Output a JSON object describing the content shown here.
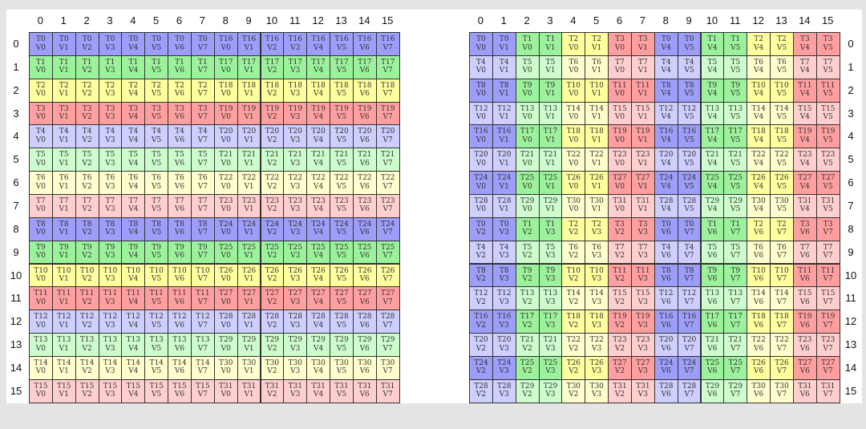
{
  "palette": {
    "dark": [
      "#9d9dfa",
      "#9cf29c",
      "#ffff9e",
      "#ff9f9f"
    ],
    "light": [
      "#ceceff",
      "#cdfdcd",
      "#ffffcd",
      "#ffcfcf"
    ]
  },
  "column_labels": [
    "0",
    "1",
    "2",
    "3",
    "4",
    "5",
    "6",
    "7",
    "8",
    "9",
    "10",
    "11",
    "12",
    "13",
    "14",
    "15"
  ],
  "row_labels": [
    "0",
    "1",
    "2",
    "3",
    "4",
    "5",
    "6",
    "7",
    "8",
    "9",
    "10",
    "11",
    "12",
    "13",
    "14",
    "15"
  ],
  "grids": [
    {
      "rows": [
        "T0:V0 T0:V1 T0:V2 T0:V3 T0:V4 T0:V5 T0:V6 T0:V7 T16:V0 T16:V1 T16:V2 T16:V3 T16:V4 T16:V5 T16:V6 T16:V7",
        "T1:V0 T1:V1 T1:V2 T1:V3 T1:V4 T1:V5 T1:V6 T1:V7 T17:V0 T17:V1 T17:V2 T17:V3 T17:V4 T17:V5 T17:V6 T17:V7",
        "T2:V0 T2:V1 T2:V2 T2:V3 T2:V4 T2:V5 T2:V6 T2:V7 T18:V0 T18:V1 T18:V2 T18:V3 T18:V4 T18:V5 T18:V6 T18:V7",
        "T3:V0 T3:V1 T3:V2 T3:V3 T3:V4 T3:V5 T3:V6 T3:V7 T19:V0 T19:V1 T19:V2 T19:V3 T19:V4 T19:V5 T19:V6 T19:V7",
        "T4:V0 T4:V1 T4:V2 T4:V3 T4:V4 T4:V5 T4:V6 T4:V7 T20:V0 T20:V1 T20:V2 T20:V3 T20:V4 T20:V5 T20:V6 T20:V7",
        "T5:V0 T5:V1 T5:V2 T5:V3 T5:V4 T5:V5 T5:V6 T5:V7 T21:V0 T21:V1 T21:V2 T21:V3 T21:V4 T21:V5 T21:V6 T21:V7",
        "T6:V0 T6:V1 T6:V2 T6:V3 T6:V4 T6:V5 T6:V6 T6:V7 T22:V0 T22:V1 T22:V2 T22:V3 T22:V4 T22:V5 T22:V6 T22:V7",
        "T7:V0 T7:V1 T7:V2 T7:V3 T7:V4 T7:V5 T7:V6 T7:V7 T23:V0 T23:V1 T23:V2 T23:V3 T23:V4 T23:V5 T23:V6 T23:V7",
        "T8:V0 T8:V1 T8:V2 T8:V3 T8:V4 T8:V5 T8:V6 T8:V7 T24:V0 T24:V1 T24:V2 T24:V3 T24:V4 T24:V5 T24:V6 T24:V7",
        "T9:V0 T9:V1 T9:V2 T9:V3 T9:V4 T9:V5 T9:V6 T9:V7 T25:V0 T25:V1 T25:V2 T25:V3 T25:V4 T25:V5 T25:V6 T25:V7",
        "T10:V0 T10:V1 T10:V2 T10:V3 T10:V4 T10:V5 T10:V6 T10:V7 T26:V0 T26:V1 T26:V2 T26:V3 T26:V4 T26:V5 T26:V6 T26:V7",
        "T11:V0 T11:V1 T11:V2 T11:V3 T11:V4 T11:V5 T11:V6 T11:V7 T27:V0 T27:V1 T27:V2 T27:V3 T27:V4 T27:V5 T27:V6 T27:V7",
        "T12:V0 T12:V1 T12:V2 T12:V3 T12:V4 T12:V5 T12:V6 T12:V7 T28:V0 T28:V1 T28:V2 T28:V3 T28:V4 T28:V5 T28:V6 T28:V7",
        "T13:V0 T13:V1 T13:V2 T13:V3 T13:V4 T13:V5 T13:V6 T13:V7 T29:V0 T29:V1 T29:V2 T29:V3 T29:V4 T29:V5 T29:V6 T29:V7",
        "T14:V0 T14:V1 T14:V2 T14:V3 T14:V4 T14:V5 T14:V6 T14:V7 T30:V0 T30:V1 T30:V2 T30:V3 T30:V4 T30:V5 T30:V6 T30:V7",
        "T15:V0 T15:V1 T15:V2 T15:V3 T15:V4 T15:V5 T15:V6 T15:V7 T31:V0 T31:V1 T31:V2 T31:V3 T31:V4 T31:V5 T31:V6 T31:V7"
      ]
    },
    {
      "rows": [
        "T0:V0 T0:V1 T1:V0 T1:V1 T2:V0 T2:V1 T3:V0 T3:V1 T0:V4 T0:V5 T1:V4 T1:V5 T2:V4 T2:V5 T3:V4 T3:V5",
        "T4:V0 T4:V1 T5:V0 T5:V1 T6:V0 T6:V1 T7:V0 T7:V1 T4:V4 T4:V5 T5:V4 T5:V5 T6:V4 T6:V5 T7:V4 T7:V5",
        "T8:V0 T8:V1 T9:V0 T9:V1 T10:V0 T10:V1 T11:V0 T11:V1 T8:V4 T8:V5 T9:V4 T9:V5 T10:V4 T10:V5 T11:V4 T11:V5",
        "T12:V0 T12:V1 T13:V0 T13:V1 T14:V0 T14:V1 T15:V0 T15:V1 T12:V4 T12:V5 T13:V4 T13:V5 T14:V4 T14:V5 T15:V4 T15:V5",
        "T16:V0 T16:V1 T17:V0 T17:V1 T18:V0 T18:V1 T19:V0 T19:V1 T16:V4 T16:V5 T17:V4 T17:V5 T18:V4 T18:V5 T19:V4 T19:V5",
        "T20:V0 T20:V1 T21:V0 T21:V1 T22:V0 T22:V1 T23:V0 T23:V1 T20:V4 T20:V5 T21:V4 T21:V5 T22:V4 T22:V5 T23:V4 T23:V5",
        "T24:V0 T24:V1 T25:V0 T25:V1 T26:V0 T26:V1 T27:V0 T27:V1 T24:V4 T24:V5 T25:V4 T25:V5 T26:V4 T26:V5 T27:V4 T27:V5",
        "T28:V0 T28:V1 T29:V0 T29:V1 T30:V0 T30:V1 T31:V0 T31:V1 T28:V4 T28:V5 T29:V4 T29:V5 T30:V4 T30:V5 T31:V4 T31:V5",
        "T0:V2 T0:V3 T1:V2 T1:V3 T2:V2 T2:V3 T3:V2 T3:V3 T0:V6 T0:V7 T1:V6 T1:V7 T2:V6 T2:V7 T3:V6 T3:V7",
        "T4:V2 T4:V3 T5:V2 T5:V3 T6:V2 T6:V3 T7:V2 T7:V3 T4:V6 T4:V7 T5:V6 T5:V7 T6:V6 T6:V7 T7:V6 T7:V7",
        "T8:V2 T8:V3 T9:V2 T9:V3 T10:V2 T10:V3 T11:V2 T11:V3 T8:V6 T8:V7 T9:V6 T9:V7 T10:V6 T10:V7 T11:V6 T11:V7",
        "T12:V2 T12:V3 T13:V2 T13:V3 T14:V2 T14:V3 T15:V2 T15:V3 T12:V6 T12:V7 T13:V6 T13:V7 T14:V6 T14:V7 T15:V6 T15:V7",
        "T16:V2 T16:V3 T17:V2 T17:V3 T18:V2 T18:V3 T19:V2 T19:V3 T16:V6 T16:V7 T17:V6 T17:V7 T18:V6 T18:V7 T19:V6 T19:V7",
        "T20:V2 T20:V3 T21:V2 T21:V3 T22:V2 T22:V3 T23:V2 T23:V3 T20:V6 T20:V7 T21:V6 T21:V7 T22:V6 T22:V7 T23:V6 T23:V7",
        "T24:V2 T24:V3 T25:V2 T25:V3 T26:V2 T26:V3 T27:V2 T27:V3 T24:V6 T24:V7 T25:V6 T25:V7 T26:V6 T26:V7 T27:V6 T27:V7",
        "T28:V2 T28:V3 T29:V2 T29:V3 T30:V2 T30:V3 T31:V2 T31:V3 T28:V6 T28:V7 T29:V6 T29:V7 T30:V6 T30:V7 T31:V6 T31:V7"
      ]
    }
  ]
}
